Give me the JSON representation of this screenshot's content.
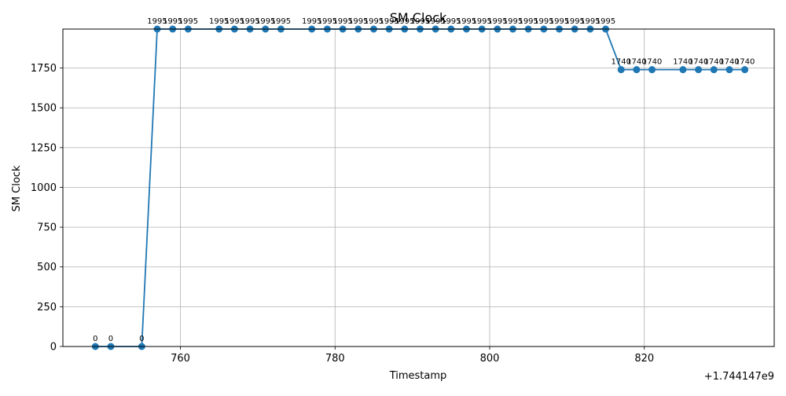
{
  "chart_data": {
    "type": "line",
    "title": "SM Clock",
    "xlabel": "Timestamp",
    "ylabel": "SM Clock",
    "x_offset_label": "+1.744147e9",
    "xlim": [
      744.8,
      836.8
    ],
    "ylim": [
      0,
      1995
    ],
    "grid": true,
    "x_ticks": [
      "760",
      "780",
      "800",
      "820"
    ],
    "y_ticks": [
      "0",
      "250",
      "500",
      "750",
      "1000",
      "1250",
      "1500",
      "1750"
    ],
    "series": [
      {
        "color": "#1f77b4",
        "x": [
          749,
          751,
          755,
          757,
          759,
          761,
          765,
          767,
          769,
          771,
          773,
          777,
          779,
          781,
          783,
          785,
          787,
          789,
          791,
          793,
          795,
          797,
          799,
          801,
          803,
          805,
          807,
          809,
          811,
          813,
          815,
          817,
          819,
          821,
          825,
          827,
          829,
          831,
          833
        ],
        "values": [
          0,
          0,
          0,
          1995,
          1995,
          1995,
          1995,
          1995,
          1995,
          1995,
          1995,
          1995,
          1995,
          1995,
          1995,
          1995,
          1995,
          1995,
          1995,
          1995,
          1995,
          1995,
          1995,
          1995,
          1995,
          1995,
          1995,
          1995,
          1995,
          1995,
          1995,
          1740,
          1740,
          1740,
          1740,
          1740,
          1740,
          1740,
          1740
        ],
        "labels": [
          "0",
          "0",
          "0",
          "1995",
          "1995",
          "1995",
          "1995",
          "1995",
          "1995",
          "1995",
          "1995",
          "1995",
          "1995",
          "1995",
          "1995",
          "1995",
          "1995",
          "1995",
          "1995",
          "1995",
          "1995",
          "1995",
          "1995",
          "1995",
          "1995",
          "1995",
          "1995",
          "1995",
          "1995",
          "1995",
          "1995",
          "1740",
          "1740",
          "1740",
          "1740",
          "1740",
          "1740",
          "1740",
          "1740"
        ]
      }
    ]
  }
}
